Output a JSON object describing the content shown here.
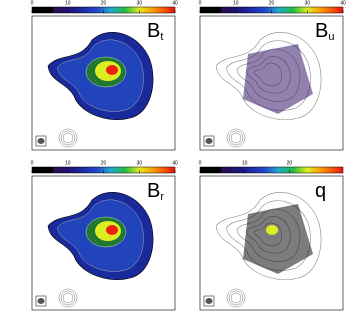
{
  "panels": [
    {
      "label": {
        "main": "B",
        "sub": "t"
      },
      "colorbar": {
        "lim": [
          0,
          40
        ],
        "ticks": [
          0,
          10,
          20,
          30,
          40
        ]
      }
    },
    {
      "label": {
        "main": "B",
        "sub": "u"
      },
      "colorbar": {
        "lim": [
          0,
          40
        ],
        "ticks": [
          0,
          10,
          20,
          30,
          40
        ]
      }
    },
    {
      "label": {
        "main": "B",
        "sub": "r"
      },
      "colorbar": {
        "lim": [
          0,
          40
        ],
        "ticks": [
          0,
          10,
          20,
          30,
          40
        ]
      }
    },
    {
      "label": {
        "main": "q"
      },
      "colorbar": {
        "lim": [
          0,
          32
        ],
        "ticks": [
          0,
          10,
          20
        ]
      }
    }
  ]
}
